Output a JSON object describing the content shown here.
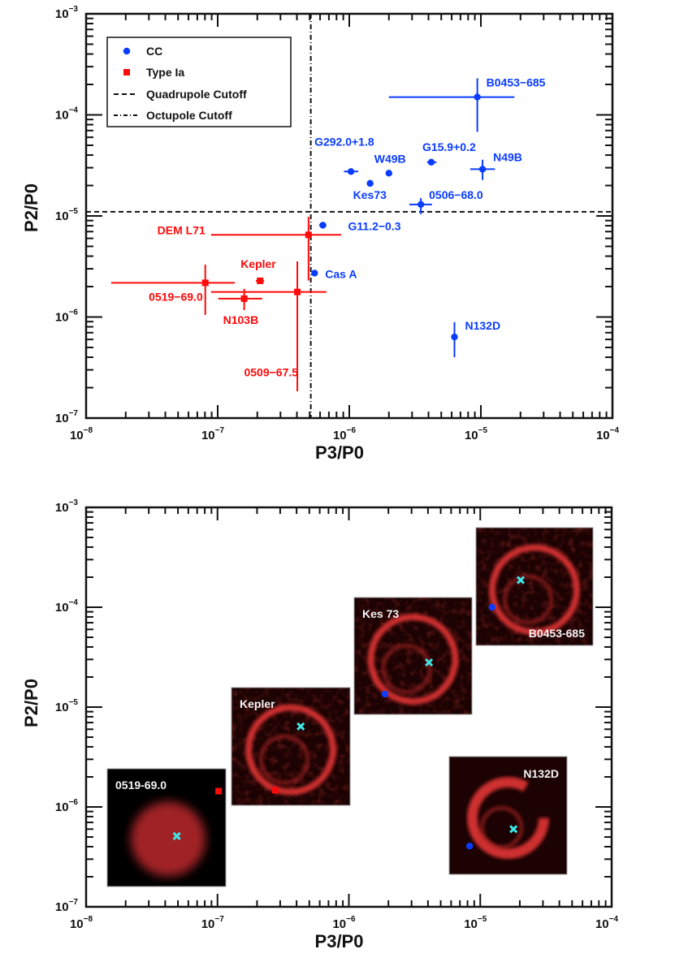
{
  "chart_data": [
    {
      "type": "scatter",
      "xlabel": "P3/P0",
      "ylabel": "P2/P0",
      "xscale": "log",
      "yscale": "log",
      "xlim": [
        1e-08,
        0.0001
      ],
      "ylim": [
        1e-07,
        0.001
      ],
      "x_ticks": [
        {
          "base": "10",
          "exp": "−8"
        },
        {
          "base": "10",
          "exp": "−7"
        },
        {
          "base": "10",
          "exp": "−6"
        },
        {
          "base": "10",
          "exp": "−5"
        },
        {
          "base": "10",
          "exp": "−4"
        }
      ],
      "y_ticks": [
        {
          "base": "10",
          "exp": "−7"
        },
        {
          "base": "10",
          "exp": "−6"
        },
        {
          "base": "10",
          "exp": "−5"
        },
        {
          "base": "10",
          "exp": "−4"
        },
        {
          "base": "10",
          "exp": "−3"
        }
      ],
      "grid": false,
      "legend": {
        "position": "top-left",
        "entries": [
          {
            "label": "CC",
            "marker": "circle",
            "color": "#0a3cff"
          },
          {
            "label": "Type Ia",
            "marker": "square",
            "color": "#ff0a0a"
          },
          {
            "label": "Quadrupole Cutoff",
            "line": "dashed",
            "color": "#111111"
          },
          {
            "label": "Octupole Cutoff",
            "line": "dash-dot",
            "color": "#111111"
          }
        ]
      },
      "cutoffs": {
        "quadrupole_y": 1.1e-05,
        "octupole_x": 5.1e-07
      },
      "series": [
        {
          "name": "CC",
          "color": "#0a3cff",
          "marker": "circle",
          "points": [
            {
              "label": "B0453−685",
              "x": 9.4e-06,
              "y": 0.00015,
              "xerr": [
                2e-06,
                1.8e-05
              ],
              "yerr": [
                6.8e-05,
                0.00023
              ]
            },
            {
              "label": "G292.0+1.8",
              "x": 1.03e-06,
              "y": 2.75e-05,
              "xerr": [
                9.1e-07,
                1.17e-06
              ]
            },
            {
              "label": "W49B",
              "x": 2e-06,
              "y": 2.65e-05
            },
            {
              "label": "Kes73",
              "x": 1.44e-06,
              "y": 2.1e-05
            },
            {
              "label": "G15.9+0.2",
              "x": 4.2e-06,
              "y": 3.4e-05,
              "xerr": [
                3.9e-06,
                4.6e-06
              ]
            },
            {
              "label": "N49B",
              "x": 1.03e-05,
              "y": 2.9e-05,
              "xerr": [
                8.3e-06,
                1.28e-05
              ],
              "yerr": [
                2.27e-05,
                3.6e-05
              ]
            },
            {
              "label": "0506−68.0",
              "x": 3.5e-06,
              "y": 1.3e-05,
              "xerr": [
                2.86e-06,
                4.25e-06
              ],
              "yerr": [
                1.04e-05,
                1.5e-05
              ]
            },
            {
              "label": "G11.2−0.3",
              "x": 6.3e-07,
              "y": 8.1e-06,
              "xerr": [
                5.9e-07,
                6.7e-07
              ]
            },
            {
              "label": "Cas A",
              "x": 5.45e-07,
              "y": 2.72e-06
            },
            {
              "label": "N132D",
              "x": 6.3e-06,
              "y": 6.35e-07,
              "yerr": [
                4e-07,
                8.9e-07
              ]
            }
          ]
        },
        {
          "name": "Type Ia",
          "color": "#ff0a0a",
          "marker": "square",
          "points": [
            {
              "label": "DEM L71",
              "x": 4.9e-07,
              "y": 6.5e-06,
              "xerr": [
                8.9e-08,
                8.7e-07
              ],
              "yerr": [
                2.3e-06,
                9.8e-06
              ]
            },
            {
              "label": "Kepler",
              "x": 2.1e-07,
              "y": 2.28e-06,
              "xerr": [
                1.95e-07,
                2.25e-07
              ]
            },
            {
              "label": "0519−69.0",
              "x": 8.05e-08,
              "y": 2.18e-06,
              "xerr": [
                1.55e-08,
                1.35e-07
              ],
              "yerr": [
                1.05e-06,
                3.3e-06
              ]
            },
            {
              "label": "N103B",
              "x": 1.59e-07,
              "y": 1.52e-06,
              "xerr": [
                1.01e-07,
                2.18e-07
              ],
              "yerr": [
                1.17e-06,
                1.9e-06
              ]
            },
            {
              "label": "0509−67.5",
              "x": 4.03e-07,
              "y": 1.77e-06,
              "xerr": [
                8.9e-08,
                6.7e-07
              ],
              "yerr": [
                1.84e-07,
                3.55e-06
              ]
            }
          ]
        }
      ]
    },
    {
      "type": "scatter",
      "xlabel": "P3/P0",
      "ylabel": "P2/P0",
      "xscale": "log",
      "yscale": "log",
      "xlim": [
        1e-08,
        0.0001
      ],
      "ylim": [
        1e-07,
        0.001
      ],
      "x_ticks": [
        {
          "base": "10",
          "exp": "−8"
        },
        {
          "base": "10",
          "exp": "−7"
        },
        {
          "base": "10",
          "exp": "−6"
        },
        {
          "base": "10",
          "exp": "−5"
        },
        {
          "base": "10",
          "exp": "−4"
        }
      ],
      "y_ticks": [
        {
          "base": "10",
          "exp": "−7"
        },
        {
          "base": "10",
          "exp": "−6"
        },
        {
          "base": "10",
          "exp": "−5"
        },
        {
          "base": "10",
          "exp": "−4"
        },
        {
          "base": "10",
          "exp": "−3"
        }
      ],
      "grid": false,
      "insets": [
        {
          "label": "0519-69.0",
          "class": "Type Ia",
          "marker_color": "#ff0a0a",
          "marker": "square",
          "point": {
            "x": 1.02e-07,
            "y": 1.44e-06
          },
          "cross": {
            "x": 4.9e-08,
            "y": 5.1e-07
          },
          "style": "blob"
        },
        {
          "label": "Kepler",
          "class": "Type Ia",
          "marker_color": "#ff0a0a",
          "marker": "square",
          "point": {
            "x": 2.76e-07,
            "y": 1.47e-06
          },
          "cross": {
            "x": 4.3e-07,
            "y": 6.4e-06
          },
          "style": "ring"
        },
        {
          "label": "Kes 73",
          "class": "CC",
          "marker_color": "#0a3cff",
          "marker": "circle",
          "point": {
            "x": 1.88e-06,
            "y": 1.35e-05
          },
          "cross": {
            "x": 4.07e-06,
            "y": 2.8e-05
          },
          "style": "ring"
        },
        {
          "label": "B0453-685",
          "class": "CC",
          "marker_color": "#0a3cff",
          "marker": "circle",
          "point": {
            "x": 1.23e-05,
            "y": 0.0001
          },
          "cross": {
            "x": 2.03e-05,
            "y": 0.000187
          },
          "style": "ring"
        },
        {
          "label": "N132D",
          "class": "CC",
          "marker_color": "#0a3cff",
          "marker": "circle",
          "point": {
            "x": 8.3e-06,
            "y": 4.06e-07
          },
          "cross": {
            "x": 1.79e-05,
            "y": 6e-07
          },
          "style": "thickring"
        }
      ],
      "cross_color": "#3ee8e8"
    }
  ]
}
